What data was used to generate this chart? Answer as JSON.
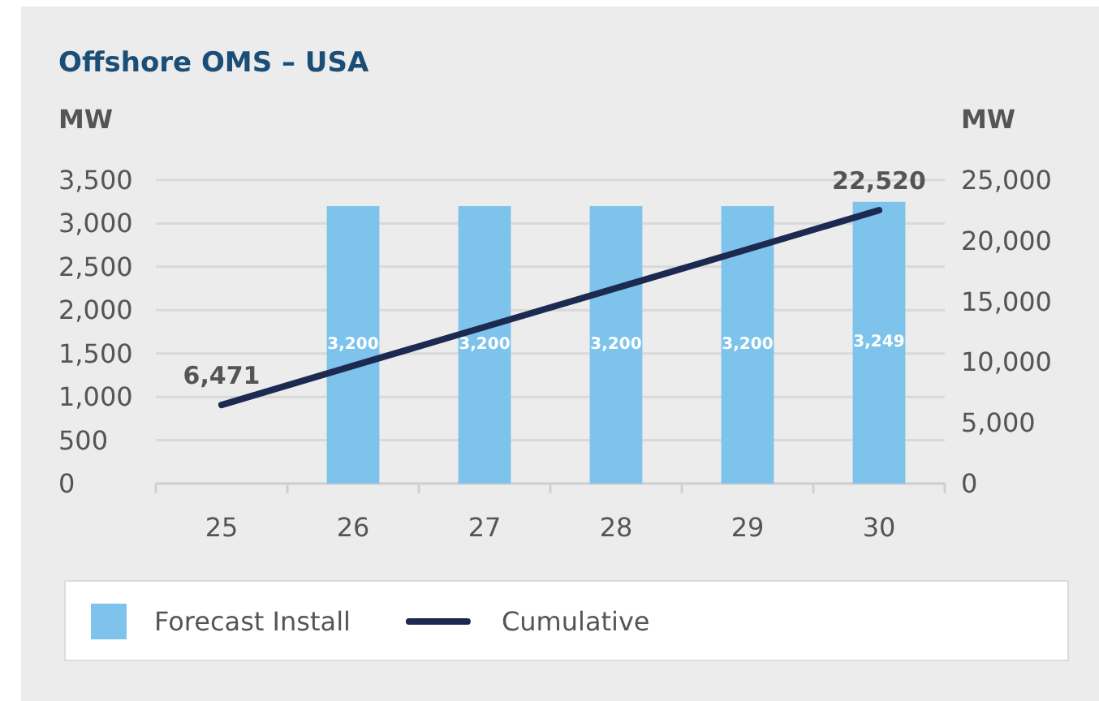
{
  "chart_data": {
    "type": "bar",
    "title": "Offshore OMS – USA",
    "ylabel": "MW",
    "y2label": "MW",
    "categories": [
      "25",
      "26",
      "27",
      "28",
      "29",
      "30"
    ],
    "series": [
      {
        "name": "Forecast Install",
        "color": "#7dc3ec",
        "values": [
          null,
          3200,
          3200,
          3200,
          3200,
          3249
        ],
        "value_labels": [
          null,
          "3,200",
          "3,200",
          "3,200",
          "3,200",
          "3,249"
        ]
      },
      {
        "name": "Cumulative",
        "type": "line",
        "axis": "y2",
        "color": "#1c2951",
        "values": [
          6471,
          9700,
          12900,
          16100,
          19300,
          22520
        ],
        "value_labels": [
          "6,471",
          null,
          null,
          null,
          null,
          "22,520"
        ]
      }
    ],
    "ylim": [
      0,
      3500
    ],
    "yticks": [
      0,
      500,
      {
        "value": 1000,
        "label": "1,000"
      },
      {
        "value": 1500,
        "label": "1,500"
      },
      {
        "value": 2000,
        "label": "2,000"
      },
      {
        "value": 2500,
        "label": "2,500"
      },
      {
        "value": 3000,
        "label": "3,000"
      },
      {
        "value": 3500,
        "label": "3,500"
      }
    ],
    "y2lim": [
      0,
      25000
    ],
    "y2ticks": [
      0,
      {
        "value": 5000,
        "label": "5,000"
      },
      {
        "value": 10000,
        "label": "10,000"
      },
      {
        "value": 15000,
        "label": "15,000"
      },
      {
        "value": 20000,
        "label": "20,000"
      },
      {
        "value": 25000,
        "label": "25,000"
      }
    ],
    "grid": "y",
    "legend": "bottom"
  }
}
